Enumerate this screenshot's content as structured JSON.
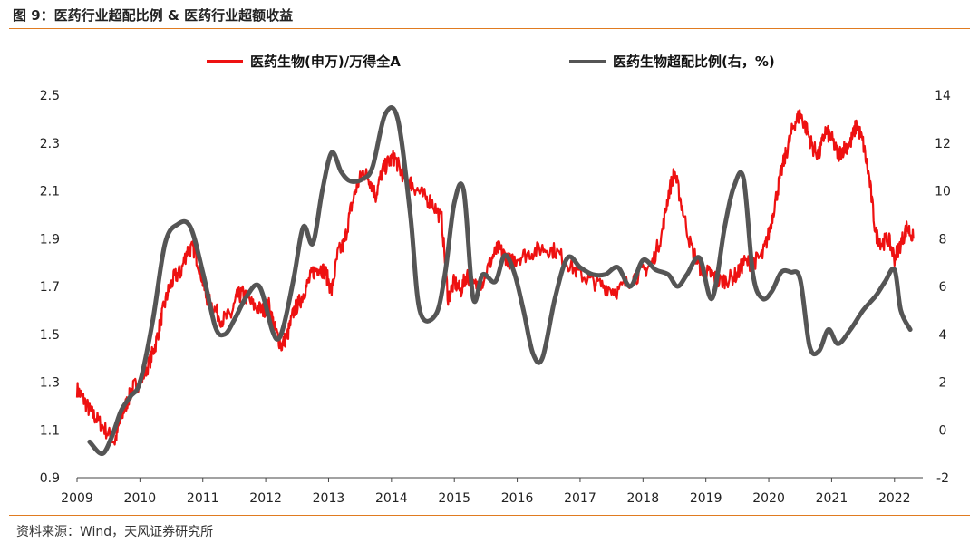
{
  "header": {
    "title": "图 9：医药行业超配比例 & 医药行业超额收益"
  },
  "footer": {
    "source": "资料来源：Wind，天风证券研究所"
  },
  "colors": {
    "accent": "#e07b20",
    "series_red": "#ee1111",
    "series_gray": "#555555"
  },
  "chart_data": {
    "type": "line",
    "title": "",
    "xlabel": "",
    "ylabel": "",
    "legend_position": "top",
    "grid": false,
    "x_ticks": [
      "2009",
      "2010",
      "2011",
      "2012",
      "2013",
      "2014",
      "2015",
      "2016",
      "2017",
      "2018",
      "2019",
      "2020",
      "2021",
      "2022"
    ],
    "y_left": {
      "ticks": [
        "0.9",
        "1.1",
        "1.3",
        "1.5",
        "1.7",
        "1.9",
        "2.1",
        "2.3",
        "2.5"
      ],
      "range": [
        0.9,
        2.5
      ]
    },
    "y_right": {
      "ticks": [
        "-2",
        "0",
        "2",
        "4",
        "6",
        "8",
        "10",
        "12",
        "14"
      ],
      "range": [
        -2,
        14
      ]
    },
    "series": [
      {
        "name": "医药生物(申万)/万得全A",
        "axis": "left",
        "x": [
          2009.0,
          2009.1,
          2009.2,
          2009.3,
          2009.45,
          2009.6,
          2009.7,
          2009.8,
          2009.9,
          2010.0,
          2010.15,
          2010.25,
          2010.35,
          2010.45,
          2010.55,
          2010.65,
          2010.75,
          2010.85,
          2010.95,
          2011.05,
          2011.15,
          2011.3,
          2011.45,
          2011.55,
          2011.65,
          2011.8,
          2011.95,
          2012.05,
          2012.15,
          2012.25,
          2012.35,
          2012.45,
          2012.55,
          2012.65,
          2012.75,
          2012.85,
          2012.95,
          2013.05,
          2013.15,
          2013.25,
          2013.35,
          2013.45,
          2013.55,
          2013.65,
          2013.75,
          2013.85,
          2013.95,
          2014.05,
          2014.15,
          2014.25,
          2014.35,
          2014.5,
          2014.65,
          2014.8,
          2014.9,
          2015.0,
          2015.1,
          2015.2,
          2015.3,
          2015.45,
          2015.6,
          2015.7,
          2015.8,
          2015.9,
          2016.0,
          2016.2,
          2016.4,
          2016.6,
          2016.8,
          2017.0,
          2017.2,
          2017.4,
          2017.6,
          2017.8,
          2018.0,
          2018.15,
          2018.3,
          2018.4,
          2018.5,
          2018.6,
          2018.75,
          2018.9,
          2019.0,
          2019.1,
          2019.2,
          2019.35,
          2019.5,
          2019.6,
          2019.75,
          2019.9,
          2020.0,
          2020.1,
          2020.2,
          2020.3,
          2020.4,
          2020.5,
          2020.6,
          2020.7,
          2020.8,
          2020.9,
          2021.0,
          2021.1,
          2021.2,
          2021.3,
          2021.4,
          2021.5,
          2021.6,
          2021.7,
          2021.8,
          2021.9,
          2022.0,
          2022.1,
          2022.2,
          2022.3
        ],
        "values": [
          1.27,
          1.23,
          1.18,
          1.15,
          1.1,
          1.05,
          1.15,
          1.22,
          1.28,
          1.3,
          1.38,
          1.46,
          1.58,
          1.68,
          1.74,
          1.76,
          1.85,
          1.86,
          1.78,
          1.66,
          1.62,
          1.56,
          1.58,
          1.66,
          1.67,
          1.62,
          1.6,
          1.62,
          1.52,
          1.45,
          1.5,
          1.6,
          1.64,
          1.7,
          1.76,
          1.78,
          1.76,
          1.68,
          1.84,
          1.88,
          2.02,
          2.12,
          2.18,
          2.15,
          2.08,
          2.18,
          2.22,
          2.24,
          2.18,
          2.15,
          2.12,
          2.08,
          2.05,
          1.98,
          1.65,
          1.72,
          1.68,
          1.75,
          1.7,
          1.72,
          1.82,
          1.86,
          1.83,
          1.8,
          1.82,
          1.84,
          1.86,
          1.85,
          1.8,
          1.75,
          1.72,
          1.7,
          1.68,
          1.73,
          1.76,
          1.8,
          1.92,
          2.08,
          2.18,
          2.06,
          1.88,
          1.78,
          1.76,
          1.75,
          1.72,
          1.73,
          1.75,
          1.8,
          1.8,
          1.83,
          1.92,
          2.05,
          2.18,
          2.28,
          2.38,
          2.42,
          2.36,
          2.28,
          2.25,
          2.35,
          2.32,
          2.25,
          2.28,
          2.3,
          2.38,
          2.3,
          2.15,
          1.92,
          1.88,
          1.9,
          1.82,
          1.88,
          1.95,
          1.9
        ]
      },
      {
        "name": "医药生物超配比例(右，%)",
        "axis": "right",
        "x": [
          2009.2,
          2009.4,
          2009.55,
          2009.7,
          2009.85,
          2010.0,
          2010.2,
          2010.4,
          2010.6,
          2010.8,
          2011.0,
          2011.2,
          2011.35,
          2011.5,
          2011.7,
          2011.9,
          2012.1,
          2012.2,
          2012.3,
          2012.45,
          2012.6,
          2012.75,
          2012.9,
          2013.05,
          2013.2,
          2013.35,
          2013.55,
          2013.7,
          2013.9,
          2014.1,
          2014.3,
          2014.45,
          2014.7,
          2014.85,
          2015.0,
          2015.15,
          2015.3,
          2015.45,
          2015.65,
          2015.8,
          2015.95,
          2016.1,
          2016.25,
          2016.4,
          2016.6,
          2016.8,
          2017.0,
          2017.2,
          2017.4,
          2017.6,
          2017.8,
          2018.0,
          2018.2,
          2018.4,
          2018.55,
          2018.7,
          2018.9,
          2019.1,
          2019.3,
          2019.45,
          2019.6,
          2019.75,
          2019.9,
          2020.05,
          2020.2,
          2020.35,
          2020.5,
          2020.65,
          2020.8,
          2020.95,
          2021.1,
          2021.3,
          2021.5,
          2021.7,
          2021.85,
          2022.0,
          2022.1,
          2022.25
        ],
        "values": [
          -0.5,
          -1.0,
          -0.3,
          0.8,
          1.4,
          2.0,
          4.5,
          7.8,
          8.6,
          8.5,
          6.6,
          4.3,
          4.0,
          4.6,
          5.6,
          6.0,
          4.2,
          3.8,
          4.5,
          6.4,
          8.5,
          7.8,
          10.0,
          11.6,
          10.8,
          10.4,
          10.5,
          11.0,
          13.2,
          13.0,
          9.0,
          5.0,
          4.8,
          6.5,
          9.5,
          10.0,
          5.5,
          6.5,
          6.2,
          7.3,
          6.6,
          5.0,
          3.2,
          3.0,
          5.5,
          7.2,
          6.8,
          6.5,
          6.5,
          6.8,
          6.0,
          7.1,
          6.7,
          6.5,
          6.0,
          6.5,
          7.2,
          5.5,
          8.5,
          10.2,
          10.5,
          6.5,
          5.5,
          5.8,
          6.6,
          6.6,
          6.3,
          3.5,
          3.3,
          4.2,
          3.6,
          4.2,
          5.0,
          5.6,
          6.2,
          6.7,
          5.0,
          4.2
        ]
      }
    ]
  }
}
